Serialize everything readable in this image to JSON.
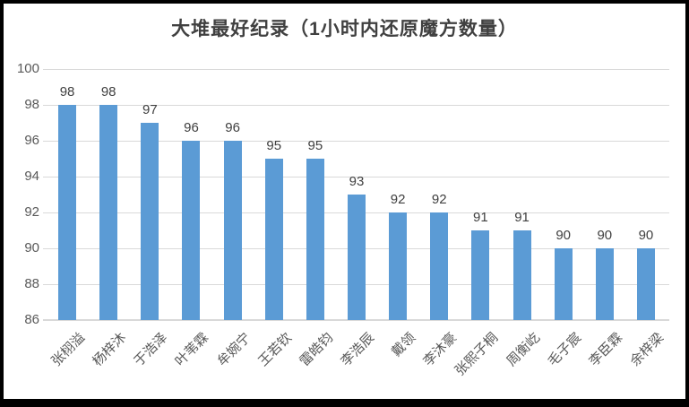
{
  "window": {
    "background_color": "#ffffff",
    "frame_color": "#000000"
  },
  "chart_data": {
    "type": "bar",
    "title": "大堆最好纪录（1小时内还原魔方数量）",
    "categories": [
      "张栩溢",
      "杨梓沐",
      "于浩泽",
      "叶苇霖",
      "牟婉宁",
      "王若钦",
      "雷皓钧",
      "李浩辰",
      "戴领",
      "李沐豪",
      "张熙子桐",
      "周衡屹",
      "毛子宸",
      "李臣霖",
      "余梓梁"
    ],
    "values": [
      98,
      98,
      97,
      96,
      96,
      95,
      95,
      93,
      92,
      92,
      91,
      91,
      90,
      90,
      90
    ],
    "data_labels": [
      98,
      98,
      97,
      96,
      96,
      95,
      95,
      93,
      92,
      92,
      91,
      91,
      90,
      90,
      90
    ],
    "xlabel": "",
    "ylabel": "",
    "ylim": [
      86,
      100
    ],
    "yticks": [
      100,
      98,
      96,
      94,
      92,
      90,
      88,
      86
    ],
    "grid": true,
    "legend_position": "none",
    "x_label_rotation_deg": 45,
    "bar_color": "#5b9bd5",
    "gridline_color": "#d9d9d9",
    "title_color": "#404040",
    "axis_label_color": "#595959",
    "data_label_color": "#404040"
  }
}
